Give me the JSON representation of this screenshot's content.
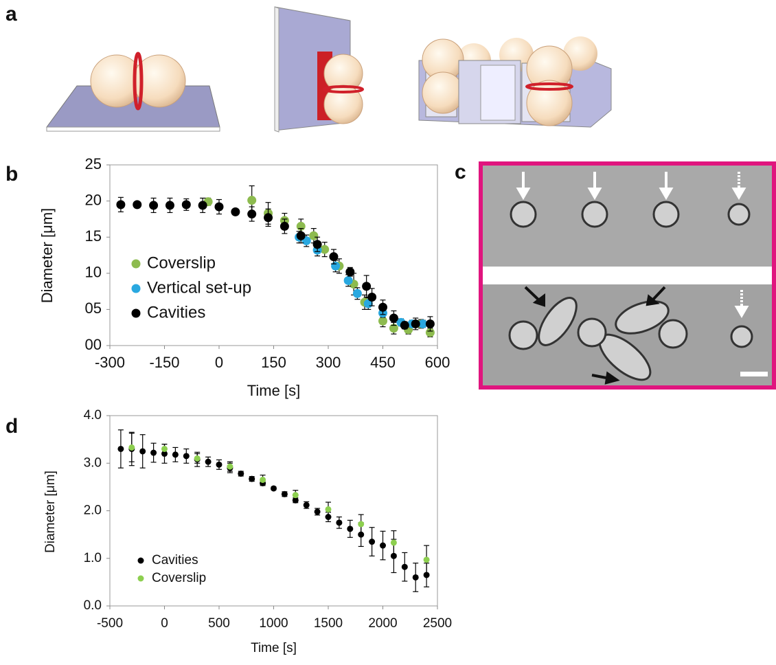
{
  "panel_labels": [
    "a",
    "b",
    "c",
    "d"
  ],
  "chart_data": [
    {
      "type": "scatter",
      "xlabel": "Time [s]",
      "ylabel": "Diameter [μm]",
      "xlim": [
        -300,
        600
      ],
      "xticks": [
        -300,
        -150,
        0,
        150,
        300,
        450,
        600
      ],
      "ylim": [
        0,
        25
      ],
      "yticks": [
        {
          "value": 0,
          "label": "00"
        },
        {
          "value": 5,
          "label": "05"
        },
        10,
        15,
        20,
        25
      ],
      "series": [
        {
          "name": "Coverslip",
          "color": "#8dbb4f",
          "x": [
            -30,
            90,
            135,
            180,
            225,
            260,
            290,
            330,
            370,
            400,
            450,
            480,
            520,
            555,
            580
          ],
          "values": [
            19.9,
            20.1,
            18.3,
            17.3,
            16.5,
            15.2,
            13.3,
            11.0,
            8.5,
            6.0,
            3.4,
            2.4,
            2.2,
            3.0,
            1.8
          ],
          "yerr": [
            0.5,
            2.0,
            1.5,
            1.0,
            1.0,
            1.0,
            1.0,
            1.0,
            1.5,
            1.0,
            0.8,
            0.8,
            0.6,
            0.6,
            0.6
          ]
        },
        {
          "name": "Vertical set-up",
          "color": "#29a8e0",
          "x": [
            220,
            240,
            270,
            320,
            355,
            380,
            410,
            450,
            500,
            530,
            560
          ],
          "values": [
            15.0,
            14.5,
            13.2,
            11.0,
            9.0,
            7.2,
            5.8,
            4.5,
            3.2,
            3.0,
            3.0
          ],
          "yerr": [
            0.8,
            0.8,
            0.8,
            0.8,
            0.8,
            0.8,
            0.8,
            0.6,
            0.5,
            0.5,
            0.5
          ]
        },
        {
          "name": "Cavities",
          "color": "#000000",
          "x": [
            -270,
            -225,
            -180,
            -135,
            -90,
            -45,
            0,
            45,
            90,
            135,
            180,
            225,
            270,
            315,
            360,
            405,
            420,
            450,
            480,
            510,
            540,
            580
          ],
          "values": [
            19.5,
            19.5,
            19.4,
            19.4,
            19.5,
            19.4,
            19.2,
            18.5,
            18.2,
            17.7,
            16.5,
            15.2,
            14.0,
            12.3,
            10.2,
            8.2,
            6.7,
            5.3,
            3.8,
            2.8,
            3.0,
            3.0
          ],
          "yerr": [
            1.0,
            0.4,
            1.0,
            1.0,
            0.8,
            1.0,
            1.0,
            0.4,
            1.0,
            1.2,
            1.0,
            1.0,
            1.0,
            1.0,
            0.6,
            1.5,
            1.2,
            1.0,
            1.0,
            0.5,
            0.8,
            1.0
          ]
        }
      ]
    },
    {
      "type": "scatter",
      "xlabel": "Time [s]",
      "ylabel": "Diameter [μm]",
      "xlim": [
        -500,
        2500
      ],
      "xticks": [
        -500,
        0,
        500,
        1000,
        1500,
        2000,
        2500
      ],
      "ylim": [
        0,
        4
      ],
      "yticks": [
        {
          "value": 0,
          "label": "0.0"
        },
        {
          "value": 1,
          "label": "1.0"
        },
        {
          "value": 2,
          "label": "2.0"
        },
        {
          "value": 3,
          "label": "3.0"
        },
        {
          "value": 4,
          "label": "4.0"
        }
      ],
      "series": [
        {
          "name": "Cavities",
          "color": "#000000",
          "x": [
            -400,
            -300,
            -200,
            -100,
            0,
            100,
            200,
            300,
            400,
            500,
            600,
            700,
            800,
            900,
            1000,
            1100,
            1200,
            1300,
            1400,
            1500,
            1600,
            1700,
            1800,
            1900,
            2000,
            2100,
            2200,
            2300,
            2400
          ],
          "values": [
            3.3,
            3.3,
            3.25,
            3.22,
            3.2,
            3.18,
            3.15,
            3.08,
            3.03,
            2.97,
            2.9,
            2.78,
            2.67,
            2.58,
            2.47,
            2.35,
            2.22,
            2.12,
            1.98,
            1.87,
            1.75,
            1.62,
            1.5,
            1.35,
            1.27,
            1.05,
            0.82,
            0.6,
            0.65
          ],
          "yerr": [
            0.4,
            0.35,
            0.35,
            0.2,
            0.2,
            0.15,
            0.15,
            0.15,
            0.1,
            0.1,
            0.1,
            0.05,
            0.05,
            0.05,
            0.03,
            0.05,
            0.05,
            0.07,
            0.07,
            0.1,
            0.12,
            0.18,
            0.25,
            0.3,
            0.3,
            0.35,
            0.3,
            0.3,
            0.25
          ]
        },
        {
          "name": "Coverslip",
          "color": "#8dcf4f",
          "x": [
            -300,
            0,
            300,
            600,
            900,
            1200,
            1500,
            1800,
            2100,
            2400
          ],
          "values": [
            3.33,
            3.3,
            3.1,
            2.93,
            2.65,
            2.33,
            2.03,
            1.72,
            1.33,
            0.97
          ],
          "yerr": [
            0.3,
            0.1,
            0.1,
            0.1,
            0.1,
            0.1,
            0.15,
            0.2,
            0.25,
            0.3
          ]
        }
      ]
    }
  ]
}
